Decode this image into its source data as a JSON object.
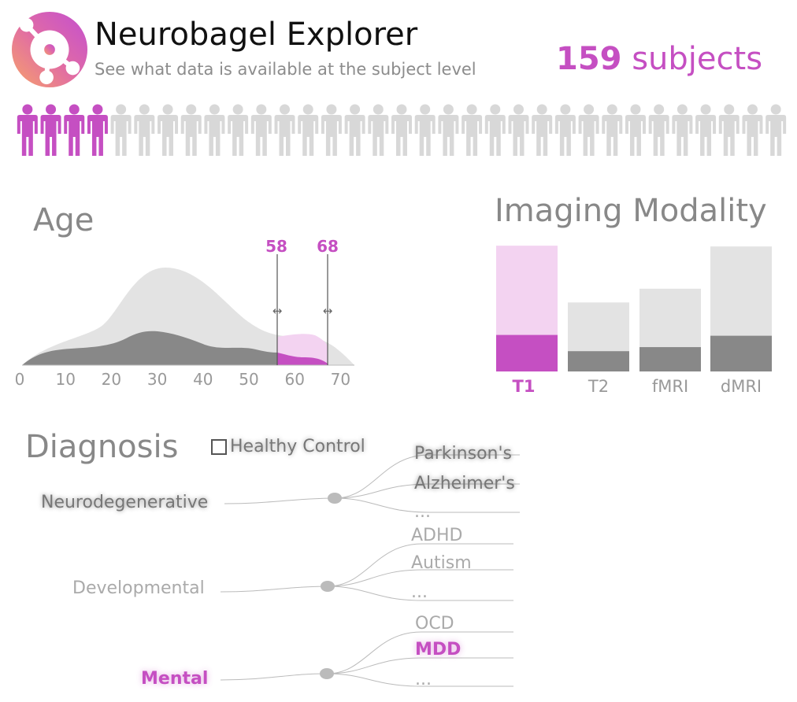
{
  "header": {
    "title": "Neurobagel Explorer",
    "subtitle": "See what data is available at the subject level",
    "count_number": "159",
    "count_label": " subjects"
  },
  "people": {
    "highlighted": 4,
    "total": 33,
    "highlight_color": "#c54fc2",
    "muted_color": "#d8d8d8"
  },
  "age": {
    "title": "Age",
    "min_label": "58",
    "max_label": "68",
    "ticks": [
      "0",
      "10",
      "20",
      "30",
      "40",
      "50",
      "60",
      "70"
    ],
    "selected_range": [
      58,
      68
    ],
    "range_arrow_glyph": "↔"
  },
  "modality": {
    "title": "Imaging Modality",
    "active_color": "#c54fc2",
    "bars": [
      {
        "label": "T1",
        "active": true,
        "total": 155,
        "matched": 45
      },
      {
        "label": "T2",
        "active": false,
        "total": 85,
        "matched": 25
      },
      {
        "label": "fMRI",
        "active": false,
        "total": 102,
        "matched": 30
      },
      {
        "label": "dMRI",
        "active": false,
        "total": 154,
        "matched": 44
      }
    ]
  },
  "diagnosis": {
    "title": "Diagnosis",
    "healthy_control_label": "Healthy Control",
    "groups": [
      {
        "name": "Neurodegenerative",
        "style": "shadow",
        "children": [
          {
            "label": "Parkinson's",
            "style": "shadow"
          },
          {
            "label": "Alzheimer's",
            "style": "shadow"
          },
          {
            "label": "...",
            "style": "muted"
          }
        ]
      },
      {
        "name": "Developmental",
        "style": "muted",
        "children": [
          {
            "label": "ADHD",
            "style": "muted"
          },
          {
            "label": "Autism",
            "style": "muted"
          },
          {
            "label": "...",
            "style": "muted"
          }
        ]
      },
      {
        "name": "Mental",
        "style": "active",
        "children": [
          {
            "label": "OCD",
            "style": "muted"
          },
          {
            "label": "MDD",
            "style": "active"
          },
          {
            "label": "...",
            "style": "muted"
          }
        ]
      }
    ]
  }
}
